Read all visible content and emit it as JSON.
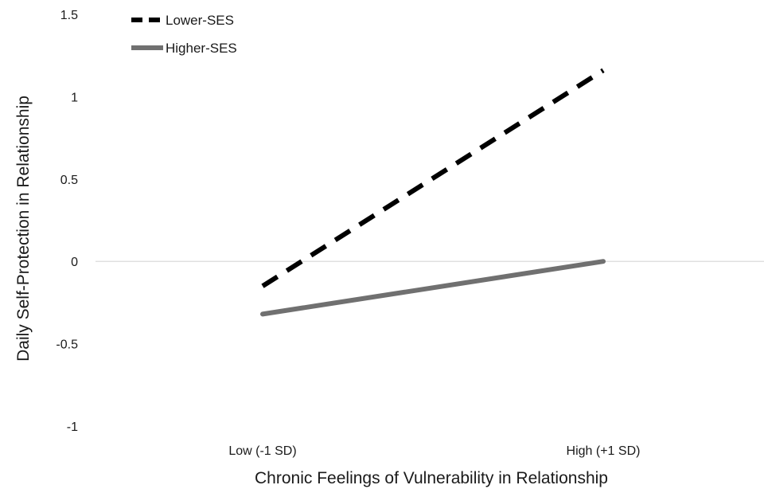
{
  "chart_data": {
    "type": "line",
    "title": "",
    "xlabel": "Chronic Feelings of Vulnerability in Relationship",
    "ylabel": "Daily Self-Protection in Relationship",
    "categories": [
      "Low (-1 SD)",
      "High (+1 SD)"
    ],
    "ylim": [
      -1,
      1.5
    ],
    "yticks": [
      "-1",
      "-0.5",
      "0",
      "0.5",
      "1",
      "1.5"
    ],
    "grid": false,
    "zero_line": true,
    "legend_position": "top-left",
    "series": [
      {
        "name": "Lower-SES",
        "values": [
          -0.15,
          1.16
        ],
        "color": "#000000",
        "line_style": "dashed"
      },
      {
        "name": "Higher-SES",
        "values": [
          -0.32,
          0.0
        ],
        "color": "#707070",
        "line_style": "solid"
      }
    ]
  }
}
